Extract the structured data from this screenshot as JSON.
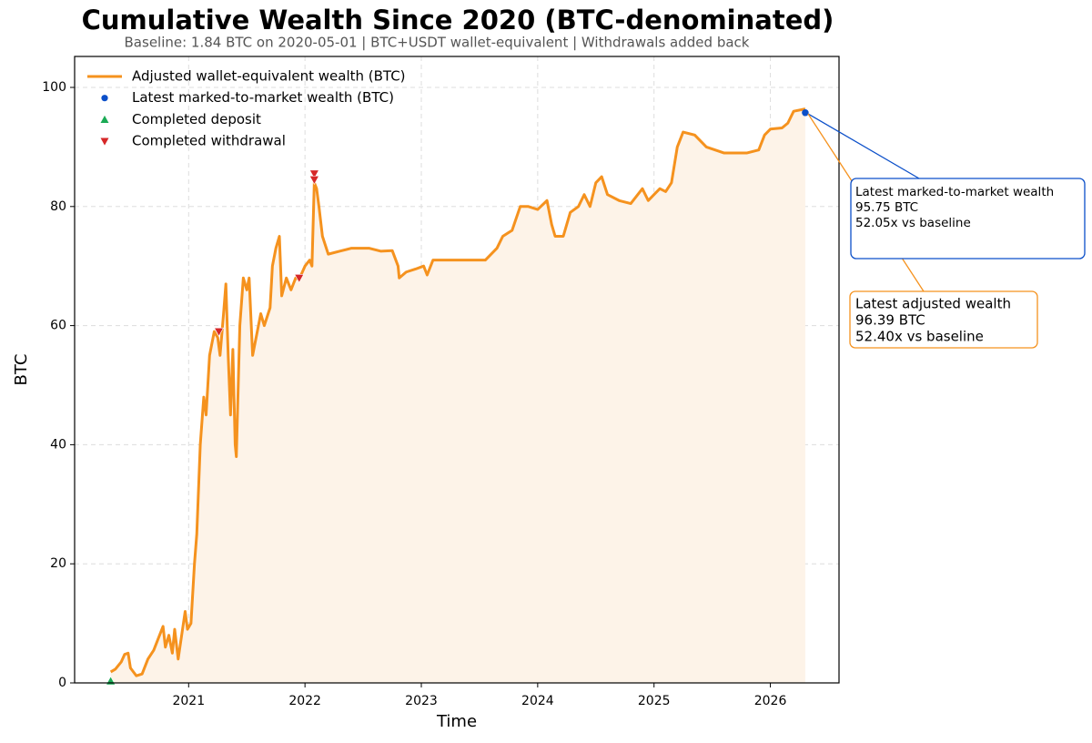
{
  "chart_data": {
    "type": "line",
    "title": "Cumulative Wealth Since 2020 (BTC-denominated)",
    "subtitle": "Baseline: 1.84 BTC on 2020-05-01 | BTC+USDT wallet-equivalent | Withdrawals added back",
    "x_label": "Time",
    "y_label": "BTC",
    "xlim": [
      2020.02,
      2026.59
    ],
    "xticks": [
      2021,
      2022,
      2023,
      2024,
      2025,
      2026
    ],
    "ylim": [
      0,
      105.2
    ],
    "yticks": [
      0,
      20,
      40,
      60,
      80,
      100
    ],
    "grid": true,
    "legend": "upper left",
    "series": [
      {
        "name": "Adjusted wallet-equivalent wealth (BTC)",
        "color": "#f5921e",
        "marker": "line",
        "fill": "#fdf3e8",
        "x": [
          2020.33,
          2020.37,
          2020.42,
          2020.45,
          2020.48,
          2020.5,
          2020.55,
          2020.6,
          2020.65,
          2020.7,
          2020.75,
          2020.78,
          2020.8,
          2020.83,
          2020.86,
          2020.88,
          2020.91,
          2020.94,
          2020.97,
          2020.99,
          2021.02,
          2021.05,
          2021.07,
          2021.1,
          2021.13,
          2021.15,
          2021.18,
          2021.22,
          2021.25,
          2021.27,
          2021.3,
          2021.32,
          2021.34,
          2021.36,
          2021.38,
          2021.4,
          2021.41,
          2021.44,
          2021.47,
          2021.5,
          2021.52,
          2021.55,
          2021.58,
          2021.62,
          2021.65,
          2021.7,
          2021.72,
          2021.75,
          2021.78,
          2021.8,
          2021.84,
          2021.88,
          2021.92,
          2021.95,
          2022.0,
          2022.04,
          2022.06,
          2022.08,
          2022.1,
          2022.12,
          2022.15,
          2022.2,
          2022.3,
          2022.4,
          2022.55,
          2022.65,
          2022.75,
          2022.8,
          2022.81,
          2022.87,
          2022.95,
          2023.02,
          2023.05,
          2023.1,
          2023.2,
          2023.4,
          2023.55,
          2023.65,
          2023.7,
          2023.78,
          2023.85,
          2023.92,
          2024.0,
          2024.08,
          2024.12,
          2024.15,
          2024.22,
          2024.28,
          2024.35,
          2024.4,
          2024.45,
          2024.5,
          2024.55,
          2024.6,
          2024.7,
          2024.8,
          2024.9,
          2024.95,
          2025.0,
          2025.05,
          2025.1,
          2025.15,
          2025.2,
          2025.25,
          2025.35,
          2025.45,
          2025.6,
          2025.8,
          2025.9,
          2025.95,
          2026.0,
          2026.1,
          2026.15,
          2026.2,
          2026.3
        ],
        "values": [
          1.84,
          2.3,
          3.5,
          4.8,
          5,
          2.5,
          1.2,
          1.5,
          4,
          5.5,
          8,
          9.5,
          6,
          8,
          5,
          9,
          4,
          8,
          12,
          9,
          10,
          20,
          25,
          40,
          48,
          45,
          55,
          59,
          58,
          55,
          62,
          67,
          55,
          45,
          56,
          40,
          38,
          60,
          68,
          66,
          68,
          55,
          58,
          62,
          60,
          63,
          70,
          73,
          75,
          65,
          68,
          66,
          68,
          67.8,
          70,
          71,
          70,
          84,
          83,
          80,
          75,
          72,
          72.5,
          73,
          73,
          72.5,
          72.6,
          70,
          68,
          69,
          69.5,
          70,
          68.5,
          71,
          71,
          71,
          71,
          73,
          75,
          76,
          80,
          80,
          79.5,
          81,
          77,
          75,
          75,
          79,
          80,
          82,
          80,
          84,
          85,
          82,
          81,
          80.5,
          83,
          81,
          82,
          83,
          82.5,
          84,
          90,
          92.5,
          92,
          90,
          89,
          89,
          89.5,
          92,
          93,
          93.2,
          94,
          96,
          96.39
        ]
      },
      {
        "name": "Latest marked-to-market wealth (BTC)",
        "color": "#0b4fc9",
        "marker": "circle",
        "x": [
          2026.3
        ],
        "values": [
          95.75
        ]
      },
      {
        "name": "Completed deposit",
        "color": "#1aaa55",
        "marker": "triangle-up",
        "x": [
          2020.33
        ],
        "values": [
          0.3
        ]
      },
      {
        "name": "Completed withdrawal",
        "color": "#d62728",
        "marker": "triangle-down",
        "x": [
          2021.26,
          2021.95,
          2022.08,
          2022.08
        ],
        "values": [
          59,
          68,
          85.5,
          84.5
        ]
      }
    ],
    "annotations": [
      {
        "lines": [
          "Latest marked-to-market wealth",
          "95.75 BTC",
          "52.05x vs baseline"
        ]
      },
      {
        "lines": [
          "Latest adjusted wealth",
          "96.39 BTC",
          "52.40x vs baseline"
        ]
      }
    ]
  }
}
